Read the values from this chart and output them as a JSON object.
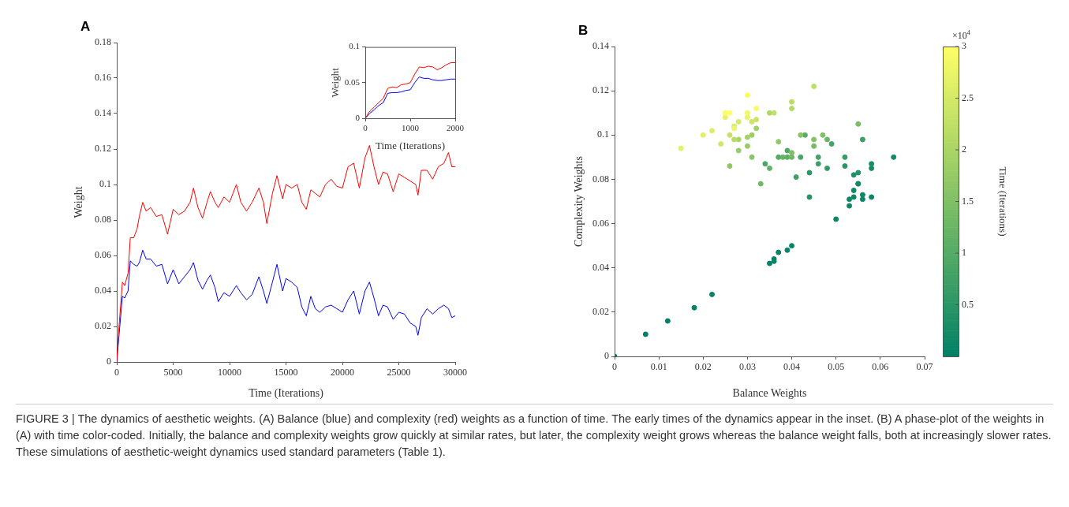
{
  "chart_data": [
    {
      "type": "line",
      "title": "A",
      "xlabel": "Time (Iterations)",
      "ylabel": "Weight",
      "xlim": [
        0,
        30000
      ],
      "xticks": [
        0,
        5000,
        10000,
        15000,
        20000,
        25000,
        30000
      ],
      "ylim": [
        0,
        0.18
      ],
      "yticks": [
        0,
        0.02,
        0.04,
        0.06,
        0.08,
        0.1,
        0.12,
        0.14,
        0.16,
        0.18
      ],
      "annotations": [
        "FIGURE 3 | The dynamics of aesthetic weights. (A) Balance (blue) and complexity (red) weights as a function of time. The early times of the dynamics appear in the inset. (B) A phase-plot of the weights in (A) with time color-coded. Initially, the balance and complexity weights grow quickly at similar rates, but later, the complexity weight grows whereas the balance weight falls, both at increasingly slower rates. These simulations of aesthetic-weight dynamics used standard parameters (Table 1)."
      ],
      "x": [
        0,
        200,
        500,
        700,
        1000,
        1200,
        1500,
        1800,
        2000,
        2300,
        2600,
        3000,
        3500,
        4000,
        4500,
        5000,
        5500,
        6000,
        6500,
        6800,
        7200,
        7600,
        8000,
        8300,
        8700,
        9000,
        9500,
        10000,
        10600,
        11000,
        11500,
        12000,
        12600,
        13000,
        13300,
        13800,
        14200,
        14700,
        15000,
        15500,
        16000,
        16400,
        16800,
        17200,
        17600,
        18000,
        18500,
        19000,
        19500,
        20000,
        20500,
        21000,
        21500,
        22000,
        22400,
        22800,
        23200,
        23600,
        24000,
        24500,
        25000,
        25500,
        26000,
        26500,
        26700,
        27000,
        27500,
        28000,
        28500,
        29000,
        29400,
        29700,
        30000
      ],
      "series": [
        {
          "color": "#ff0000",
          "values": [
            0,
            0.02,
            0.045,
            0.043,
            0.05,
            0.07,
            0.07,
            0.075,
            0.082,
            0.09,
            0.085,
            0.087,
            0.082,
            0.083,
            0.072,
            0.086,
            0.083,
            0.085,
            0.09,
            0.098,
            0.087,
            0.081,
            0.09,
            0.096,
            0.09,
            0.087,
            0.093,
            0.09,
            0.1,
            0.09,
            0.085,
            0.09,
            0.098,
            0.09,
            0.078,
            0.095,
            0.105,
            0.092,
            0.1,
            0.098,
            0.1,
            0.09,
            0.086,
            0.097,
            0.095,
            0.093,
            0.1,
            0.103,
            0.099,
            0.098,
            0.11,
            0.112,
            0.098,
            0.115,
            0.122,
            0.11,
            0.1,
            0.107,
            0.106,
            0.096,
            0.106,
            0.104,
            0.102,
            0.1,
            0.094,
            0.108,
            0.108,
            0.103,
            0.11,
            0.112,
            0.118,
            0.11,
            0.11
          ]
        },
        {
          "color": "#0000ff",
          "values": [
            0,
            0.015,
            0.037,
            0.036,
            0.04,
            0.057,
            0.055,
            0.054,
            0.056,
            0.063,
            0.058,
            0.058,
            0.054,
            0.055,
            0.044,
            0.052,
            0.044,
            0.048,
            0.052,
            0.056,
            0.046,
            0.041,
            0.046,
            0.049,
            0.042,
            0.034,
            0.039,
            0.037,
            0.043,
            0.039,
            0.035,
            0.038,
            0.048,
            0.04,
            0.033,
            0.045,
            0.055,
            0.04,
            0.047,
            0.045,
            0.042,
            0.031,
            0.026,
            0.037,
            0.03,
            0.028,
            0.031,
            0.032,
            0.03,
            0.028,
            0.035,
            0.04,
            0.027,
            0.04,
            0.045,
            0.036,
            0.026,
            0.032,
            0.031,
            0.024,
            0.028,
            0.027,
            0.022,
            0.02,
            0.015,
            0.025,
            0.03,
            0.027,
            0.03,
            0.032,
            0.03,
            0.025,
            0.026
          ]
        }
      ]
    },
    {
      "type": "line",
      "xlabel": "Time (Iterations)",
      "ylabel": "Weight",
      "xlim": [
        0,
        2000
      ],
      "xticks": [
        0,
        1000,
        2000
      ],
      "ylim": [
        0,
        0.1
      ],
      "yticks": [
        0,
        0.05,
        0.1
      ],
      "x": [
        0,
        100,
        200,
        300,
        400,
        500,
        600,
        700,
        800,
        900,
        1000,
        1100,
        1200,
        1300,
        1400,
        1500,
        1600,
        1700,
        1800,
        1900,
        2000
      ],
      "series": [
        {
          "color": "#ff0000",
          "values": [
            0,
            0.01,
            0.016,
            0.022,
            0.028,
            0.042,
            0.044,
            0.043,
            0.047,
            0.048,
            0.05,
            0.062,
            0.072,
            0.071,
            0.073,
            0.072,
            0.068,
            0.071,
            0.075,
            0.078,
            0.078
          ]
        },
        {
          "color": "#0000ff",
          "values": [
            0,
            0.007,
            0.012,
            0.018,
            0.022,
            0.035,
            0.036,
            0.036,
            0.037,
            0.039,
            0.04,
            0.05,
            0.058,
            0.056,
            0.056,
            0.054,
            0.053,
            0.053,
            0.054,
            0.055,
            0.055
          ]
        }
      ]
    },
    {
      "type": "scatter",
      "title": "B",
      "xlabel": "Balance Weights",
      "ylabel": "Complexity Weights",
      "clabel": "Time (Iterations)",
      "marker": "circle",
      "annotations": [
        "×10$^{4}$"
      ],
      "xlim": [
        0,
        0.07
      ],
      "xticks": [
        0,
        0.01,
        0.02,
        0.03,
        0.04,
        0.05,
        0.06,
        0.07
      ],
      "ylim": [
        0,
        0.14
      ],
      "yticks": [
        0,
        0.02,
        0.04,
        0.06,
        0.08,
        0.1,
        0.12,
        0.14
      ],
      "clim": [
        0,
        3
      ],
      "cticks": [
        0.5,
        1,
        1.5,
        2,
        2.5,
        3
      ],
      "x": [
        0,
        0.007,
        0.012,
        0.018,
        0.022,
        0.035,
        0.036,
        0.036,
        0.037,
        0.039,
        0.04,
        0.05,
        0.058,
        0.056,
        0.056,
        0.054,
        0.053,
        0.053,
        0.054,
        0.055,
        0.055,
        0.063,
        0.058,
        0.058,
        0.054,
        0.055,
        0.044,
        0.052,
        0.044,
        0.048,
        0.052,
        0.056,
        0.046,
        0.041,
        0.046,
        0.049,
        0.042,
        0.034,
        0.039,
        0.037,
        0.043,
        0.039,
        0.035,
        0.038,
        0.048,
        0.04,
        0.033,
        0.045,
        0.055,
        0.04,
        0.047,
        0.045,
        0.042,
        0.031,
        0.026,
        0.037,
        0.03,
        0.028,
        0.031,
        0.032,
        0.03,
        0.028,
        0.035,
        0.04,
        0.027,
        0.04,
        0.045,
        0.036,
        0.026,
        0.032,
        0.031,
        0.024,
        0.028,
        0.027,
        0.022,
        0.02,
        0.015,
        0.025,
        0.03,
        0.027,
        0.03,
        0.032,
        0.03,
        0.025,
        0.026
      ],
      "values": [
        0,
        0.01,
        0.016,
        0.022,
        0.028,
        0.042,
        0.044,
        0.043,
        0.047,
        0.048,
        0.05,
        0.062,
        0.072,
        0.071,
        0.073,
        0.072,
        0.068,
        0.071,
        0.075,
        0.078,
        0.078,
        0.09,
        0.085,
        0.087,
        0.082,
        0.083,
        0.072,
        0.086,
        0.083,
        0.085,
        0.09,
        0.098,
        0.087,
        0.081,
        0.09,
        0.096,
        0.09,
        0.087,
        0.093,
        0.09,
        0.1,
        0.09,
        0.085,
        0.09,
        0.098,
        0.09,
        0.078,
        0.095,
        0.105,
        0.092,
        0.1,
        0.098,
        0.1,
        0.09,
        0.086,
        0.097,
        0.095,
        0.093,
        0.1,
        0.103,
        0.099,
        0.098,
        0.11,
        0.112,
        0.098,
        0.115,
        0.122,
        0.11,
        0.1,
        0.107,
        0.106,
        0.096,
        0.106,
        0.104,
        0.102,
        0.1,
        0.094,
        0.108,
        0.108,
        0.103,
        0.11,
        0.112,
        0.118,
        0.11,
        0.11
      ],
      "cvalues": [
        0,
        0.01,
        0.02,
        0.03,
        0.04,
        0.05,
        0.06,
        0.07,
        0.08,
        0.09,
        0.1,
        0.11,
        0.12,
        0.13,
        0.14,
        0.15,
        0.16,
        0.17,
        0.18,
        0.19,
        0.2,
        0.23,
        0.26,
        0.3,
        0.35,
        0.4,
        0.45,
        0.5,
        0.55,
        0.6,
        0.65,
        0.68,
        0.72,
        0.76,
        0.8,
        0.83,
        0.87,
        0.9,
        0.95,
        1,
        1.06,
        1.1,
        1.15,
        1.2,
        1.26,
        1.3,
        1.33,
        1.38,
        1.42,
        1.47,
        1.5,
        1.55,
        1.6,
        1.64,
        1.68,
        1.72,
        1.76,
        1.8,
        1.85,
        1.9,
        1.95,
        2,
        2.05,
        2.1,
        2.15,
        2.2,
        2.24,
        2.28,
        2.32,
        2.36,
        2.4,
        2.45,
        2.5,
        2.55,
        2.6,
        2.65,
        2.67,
        2.7,
        2.75,
        2.8,
        2.85,
        2.9,
        2.94,
        2.97,
        3
      ]
    }
  ]
}
